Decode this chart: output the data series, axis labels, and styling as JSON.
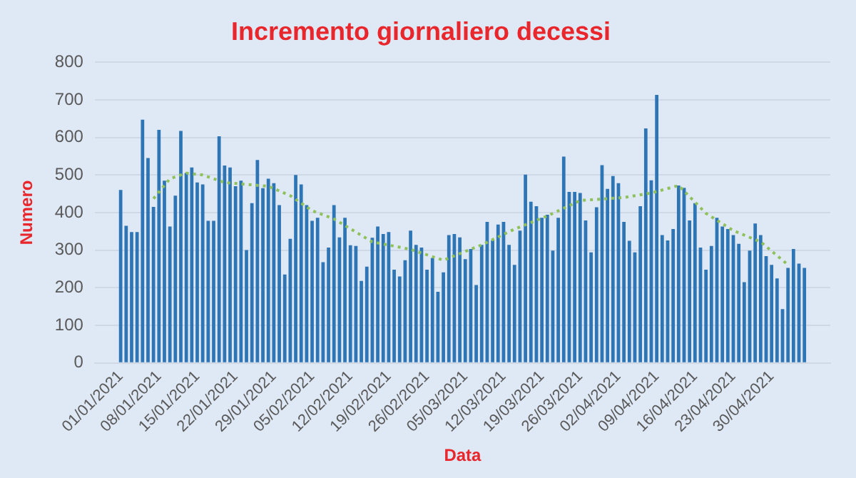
{
  "chart_data": {
    "type": "bar",
    "title": "Incremento giornaliero decessi",
    "xlabel": "Data",
    "ylabel": "Numero",
    "x": [
      "2021-01-01",
      "2021-01-02",
      "2021-01-03",
      "2021-01-04",
      "2021-01-05",
      "2021-01-06",
      "2021-01-07",
      "2021-01-08",
      "2021-01-09",
      "2021-01-10",
      "2021-01-11",
      "2021-01-12",
      "2021-01-13",
      "2021-01-14",
      "2021-01-15",
      "2021-01-16",
      "2021-01-17",
      "2021-01-18",
      "2021-01-19",
      "2021-01-20",
      "2021-01-21",
      "2021-01-22",
      "2021-01-23",
      "2021-01-24",
      "2021-01-25",
      "2021-01-26",
      "2021-01-27",
      "2021-01-28",
      "2021-01-29",
      "2021-01-30",
      "2021-01-31",
      "2021-02-01",
      "2021-02-02",
      "2021-02-03",
      "2021-02-04",
      "2021-02-05",
      "2021-02-06",
      "2021-02-07",
      "2021-02-08",
      "2021-02-09",
      "2021-02-10",
      "2021-02-11",
      "2021-02-12",
      "2021-02-13",
      "2021-02-14",
      "2021-02-15",
      "2021-02-16",
      "2021-02-17",
      "2021-02-18",
      "2021-02-19",
      "2021-02-20",
      "2021-02-21",
      "2021-02-22",
      "2021-02-23",
      "2021-02-24",
      "2021-02-25",
      "2021-02-26",
      "2021-02-27",
      "2021-02-28",
      "2021-03-01",
      "2021-03-02",
      "2021-03-03",
      "2021-03-04",
      "2021-03-05",
      "2021-03-06",
      "2021-03-07",
      "2021-03-08",
      "2021-03-09",
      "2021-03-10",
      "2021-03-11",
      "2021-03-12",
      "2021-03-13",
      "2021-03-14",
      "2021-03-15",
      "2021-03-16",
      "2021-03-17",
      "2021-03-18",
      "2021-03-19",
      "2021-03-20",
      "2021-03-21",
      "2021-03-22",
      "2021-03-23",
      "2021-03-24",
      "2021-03-25",
      "2021-03-26",
      "2021-03-27",
      "2021-03-28",
      "2021-03-29",
      "2021-03-30",
      "2021-03-31",
      "2021-04-01",
      "2021-04-02",
      "2021-04-03",
      "2021-04-04",
      "2021-04-05",
      "2021-04-06",
      "2021-04-07",
      "2021-04-08",
      "2021-04-09",
      "2021-04-10",
      "2021-04-11",
      "2021-04-12",
      "2021-04-13",
      "2021-04-14",
      "2021-04-15",
      "2021-04-16",
      "2021-04-17",
      "2021-04-18",
      "2021-04-19",
      "2021-04-20",
      "2021-04-21",
      "2021-04-22",
      "2021-04-23",
      "2021-04-24",
      "2021-04-25",
      "2021-04-26",
      "2021-04-27",
      "2021-04-28",
      "2021-04-29",
      "2021-04-30",
      "2021-05-01",
      "2021-05-02",
      "2021-05-03",
      "2021-05-04",
      "2021-05-05",
      "2021-05-06"
    ],
    "series": [
      {
        "color": "#2e75b6",
        "values": [
          460,
          365,
          348,
          348,
          647,
          545,
          415,
          620,
          485,
          363,
          445,
          617,
          505,
          520,
          480,
          475,
          378,
          378,
          603,
          525,
          520,
          470,
          485,
          300,
          425,
          540,
          465,
          490,
          478,
          420,
          235,
          330,
          500,
          475,
          420,
          378,
          386,
          268,
          307,
          420,
          334,
          386,
          313,
          311,
          218,
          256,
          333,
          363,
          343,
          348,
          248,
          230,
          273,
          352,
          314,
          307,
          248,
          279,
          189,
          241,
          340,
          343,
          334,
          276,
          303,
          207,
          314,
          375,
          326,
          368,
          375,
          314,
          261,
          352,
          501,
          429,
          417,
          386,
          394,
          299,
          386,
          549,
          455,
          455,
          452,
          379,
          294,
          414,
          526,
          463,
          497,
          478,
          375,
          325,
          294,
          417,
          624,
          486,
          713,
          340,
          326,
          356,
          472,
          466,
          379,
          425,
          307,
          248,
          311,
          386,
          363,
          356,
          340,
          317,
          215,
          299,
          371,
          340,
          284,
          261,
          225,
          143,
          253,
          303,
          264,
          253
        ]
      },
      {
        "type": "line",
        "color": "#8fc05a",
        "line_style": "dotted",
        "marker": "none",
        "x": [
          "2021-01-07",
          "2021-01-10",
          "2021-01-13",
          "2021-01-16",
          "2021-01-20",
          "2021-01-24",
          "2021-01-28",
          "2021-02-01",
          "2021-02-05",
          "2021-02-09",
          "2021-02-16",
          "2021-02-23",
          "2021-03-01",
          "2021-03-08",
          "2021-03-14",
          "2021-03-20",
          "2021-03-26",
          "2021-04-03",
          "2021-04-08",
          "2021-04-13",
          "2021-04-18",
          "2021-04-23",
          "2021-04-28",
          "2021-05-03"
        ],
        "values": [
          437,
          490,
          505,
          500,
          480,
          475,
          470,
          445,
          405,
          383,
          322,
          302,
          273,
          314,
          356,
          391,
          432,
          440,
          452,
          472,
          398,
          352,
          322,
          261
        ]
      }
    ],
    "xlim": [
      "2020-12-31",
      "2021-05-07"
    ],
    "xticks": [
      {
        "value": "2021-01-01",
        "label": "01/01/2021"
      },
      {
        "value": "2021-01-08",
        "label": "08/01/2021"
      },
      {
        "value": "2021-01-15",
        "label": "15/01/2021"
      },
      {
        "value": "2021-01-22",
        "label": "22/01/2021"
      },
      {
        "value": "2021-01-29",
        "label": "29/01/2021"
      },
      {
        "value": "2021-02-05",
        "label": "05/02/2021"
      },
      {
        "value": "2021-02-12",
        "label": "12/02/2021"
      },
      {
        "value": "2021-02-19",
        "label": "19/02/2021"
      },
      {
        "value": "2021-02-26",
        "label": "26/02/2021"
      },
      {
        "value": "2021-03-05",
        "label": "05/03/2021"
      },
      {
        "value": "2021-03-12",
        "label": "12/03/2021"
      },
      {
        "value": "2021-03-19",
        "label": "19/03/2021"
      },
      {
        "value": "2021-03-26",
        "label": "26/03/2021"
      },
      {
        "value": "2021-04-02",
        "label": "02/04/2021"
      },
      {
        "value": "2021-04-09",
        "label": "09/04/2021"
      },
      {
        "value": "2021-04-16",
        "label": "16/04/2021"
      },
      {
        "value": "2021-04-23",
        "label": "23/04/2021"
      },
      {
        "value": "2021-04-30",
        "label": "30/04/2021"
      }
    ],
    "ylim": [
      0,
      800
    ],
    "yticks": [
      0,
      100,
      200,
      300,
      400,
      500,
      600,
      700,
      800
    ],
    "grid": "y"
  }
}
